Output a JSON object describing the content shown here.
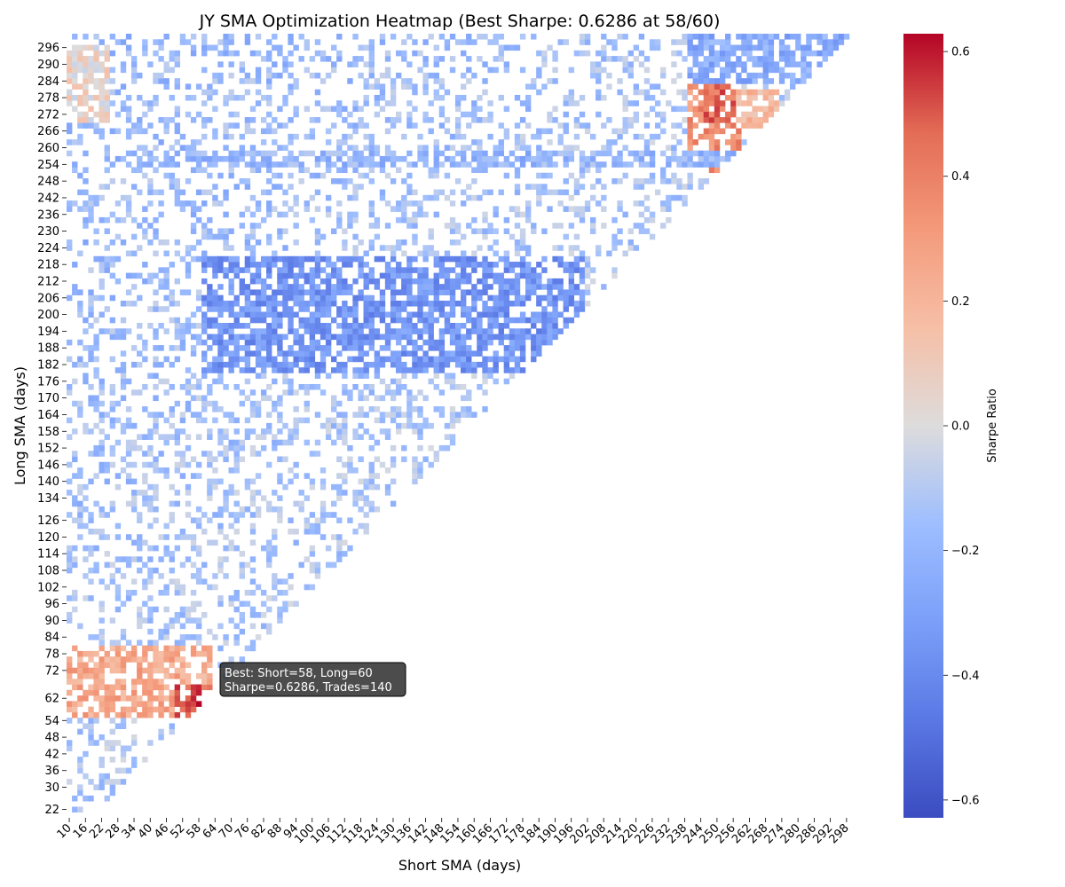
{
  "chart_data": {
    "type": "heatmap",
    "title": "JY SMA Optimization Heatmap (Best Sharpe: 0.6286 at 58/60)",
    "xlabel": "Short SMA (days)",
    "ylabel": "Long SMA (days)",
    "colorbar_label": "Sharpe Ratio",
    "colormap": "coolwarm",
    "vmin": -0.6286,
    "vmax": 0.6286,
    "colorbar_ticks": [
      "0.6",
      "0.4",
      "0.2",
      "0.0",
      "−0.2",
      "−0.4",
      "−0.6"
    ],
    "colorbar_tick_values": [
      0.6,
      0.4,
      0.2,
      0.0,
      -0.2,
      -0.4,
      -0.6
    ],
    "x_range": [
      10,
      300
    ],
    "x_step": 2,
    "y_range": [
      20,
      300
    ],
    "y_step": 2,
    "x_tick_labels": [
      "10",
      "16",
      "22",
      "28",
      "34",
      "40",
      "46",
      "52",
      "58",
      "64",
      "70",
      "76",
      "82",
      "88",
      "94",
      "100",
      "106",
      "112",
      "118",
      "124",
      "130",
      "136",
      "142",
      "148",
      "154",
      "160",
      "166",
      "172",
      "178",
      "184",
      "190",
      "196",
      "202",
      "208",
      "214",
      "220",
      "226",
      "232",
      "238",
      "244",
      "250",
      "256",
      "262",
      "268",
      "274",
      "280",
      "286",
      "292",
      "298"
    ],
    "y_tick_labels": [
      "22",
      "30",
      "36",
      "42",
      "48",
      "54",
      "62",
      "72",
      "78",
      "84",
      "90",
      "96",
      "102",
      "108",
      "114",
      "120",
      "126",
      "134",
      "140",
      "146",
      "152",
      "158",
      "164",
      "170",
      "176",
      "182",
      "188",
      "194",
      "200",
      "206",
      "212",
      "218",
      "224",
      "230",
      "236",
      "242",
      "248",
      "254",
      "260",
      "266",
      "272",
      "278",
      "284",
      "290",
      "296"
    ],
    "cell_density_note": "",
    "best": {
      "short": 58,
      "long": 60,
      "sharpe": 0.6286,
      "trades": 140
    },
    "annotation_lines": [
      "Best: Short=58, Long=60",
      "Sharpe=0.6286, Trades=140"
    ],
    "regions": [
      {
        "x": [
          10,
          62
        ],
        "y": [
          56,
          80
        ],
        "sharpe": 0.25
      },
      {
        "x": [
          50,
          62
        ],
        "y": [
          56,
          66
        ],
        "sharpe": 0.5
      },
      {
        "x": [
          240,
          258
        ],
        "y": [
          252,
          282
        ],
        "sharpe": 0.35
      },
      {
        "x": [
          246,
          256
        ],
        "y": [
          270,
          282
        ],
        "sharpe": 0.45
      },
      {
        "x": [
          258,
          272
        ],
        "y": [
          268,
          280
        ],
        "sharpe": 0.2
      },
      {
        "x": [
          10,
          24
        ],
        "y": [
          270,
          296
        ],
        "sharpe": 0.05
      },
      {
        "x": [
          30,
          270
        ],
        "y": [
          254,
          258
        ],
        "sharpe": -0.2
      },
      {
        "x": [
          240,
          300
        ],
        "y": [
          284,
          300
        ],
        "sharpe": -0.25
      },
      {
        "x": [
          60,
          200
        ],
        "y": [
          180,
          220
        ],
        "sharpe": -0.35
      }
    ]
  }
}
